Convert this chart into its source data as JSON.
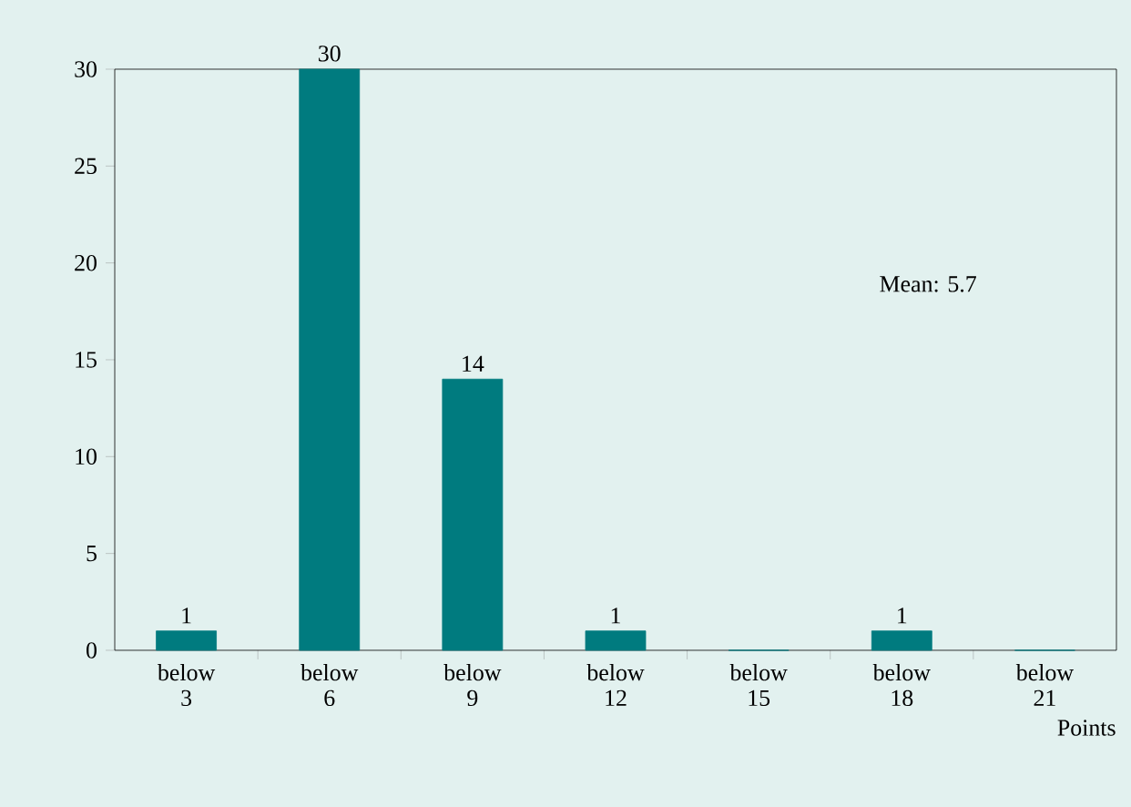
{
  "chart_data": {
    "type": "bar",
    "categories": [
      "below 3",
      "below 6",
      "below 9",
      "below 12",
      "below 15",
      "below 18",
      "below 21"
    ],
    "values": [
      1,
      30,
      14,
      1,
      0,
      1,
      0
    ],
    "value_labels": [
      "1",
      "30",
      "14",
      "1",
      null,
      "1",
      null
    ],
    "color": "#007b7f",
    "xlabel": "Points",
    "ylim": [
      0,
      30
    ],
    "yticks": [
      0,
      5,
      10,
      15,
      20,
      25,
      30
    ],
    "annotations": [
      "Mean:  5.7"
    ],
    "grid": false
  }
}
